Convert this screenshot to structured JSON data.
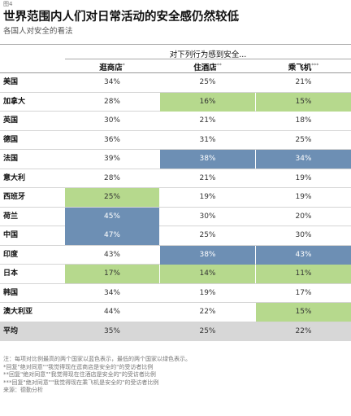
{
  "figure_label": "图4",
  "title": "世界范围内人们对日常活动的安全感仍然较低",
  "subtitle": "各国人对安全的看法",
  "colors": {
    "green": "#b6d98d",
    "blue": "#6d8fb4",
    "avg_row": "#d7d7d7"
  },
  "chart_data": {
    "type": "table",
    "title": "世界范围内人们对日常活动的安全感仍然较低",
    "subtitle": "各国人对安全的看法",
    "column_group_label": "对下列行为感到安全...",
    "columns": [
      {
        "label": "逛商店",
        "mark": "*"
      },
      {
        "label": "住酒店",
        "mark": "**"
      },
      {
        "label": "乘飞机",
        "mark": "***"
      }
    ],
    "rows": [
      {
        "country": "美国",
        "values": [
          "34%",
          "25%",
          "21%"
        ],
        "highlight": [
          "",
          "",
          ""
        ]
      },
      {
        "country": "加拿大",
        "values": [
          "28%",
          "16%",
          "15%"
        ],
        "highlight": [
          "",
          "green",
          "green"
        ]
      },
      {
        "country": "英国",
        "values": [
          "30%",
          "21%",
          "18%"
        ],
        "highlight": [
          "",
          "",
          ""
        ]
      },
      {
        "country": "德国",
        "values": [
          "36%",
          "31%",
          "25%"
        ],
        "highlight": [
          "",
          "",
          ""
        ]
      },
      {
        "country": "法国",
        "values": [
          "39%",
          "38%",
          "34%"
        ],
        "highlight": [
          "",
          "blue",
          "blue"
        ]
      },
      {
        "country": "意大利",
        "values": [
          "28%",
          "21%",
          "19%"
        ],
        "highlight": [
          "",
          "",
          ""
        ]
      },
      {
        "country": "西班牙",
        "values": [
          "25%",
          "19%",
          "19%"
        ],
        "highlight": [
          "green",
          "",
          ""
        ]
      },
      {
        "country": "荷兰",
        "values": [
          "45%",
          "30%",
          "20%"
        ],
        "highlight": [
          "blue",
          "",
          ""
        ]
      },
      {
        "country": "中国",
        "values": [
          "47%",
          "25%",
          "30%"
        ],
        "highlight": [
          "blue",
          "",
          ""
        ]
      },
      {
        "country": "印度",
        "values": [
          "43%",
          "38%",
          "43%"
        ],
        "highlight": [
          "",
          "blue",
          "blue"
        ]
      },
      {
        "country": "日本",
        "values": [
          "17%",
          "14%",
          "11%"
        ],
        "highlight": [
          "green",
          "green",
          "green"
        ]
      },
      {
        "country": "韩国",
        "values": [
          "34%",
          "19%",
          "17%"
        ],
        "highlight": [
          "",
          "",
          ""
        ]
      },
      {
        "country": "澳大利亚",
        "values": [
          "44%",
          "22%",
          "15%"
        ],
        "highlight": [
          "",
          "",
          "green"
        ]
      },
      {
        "country": "平均",
        "values": [
          "35%",
          "25%",
          "22%"
        ],
        "highlight": [
          "",
          "",
          ""
        ],
        "is_average": true
      }
    ]
  },
  "notes": [
    "注：每项对比例最高的两个国家以蓝色表示，最低的两个国家以绿色表示。",
    "*回复\"绝对同意\"\"我觉得现在逛商店是安全的\"的受访者比例",
    "**回复\"绝对同意\"\"我觉得现在住酒店是安全的\"的受访者比例",
    "***回复\"绝对同意\"\"我觉得现在乘飞机是安全的\"的受访者比例",
    "来源：德勤分析"
  ]
}
